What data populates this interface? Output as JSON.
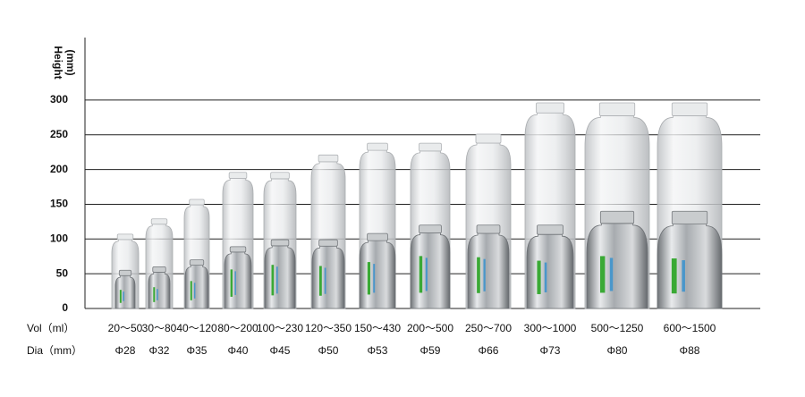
{
  "chart_data": {
    "type": "bottle-bar",
    "y_label": [
      "Height",
      "(mm)"
    ],
    "row_labels": [
      "Vol（ml）",
      "Dia（mm）"
    ],
    "categories": [
      "20～50",
      "30～80",
      "40～120",
      "80～200",
      "100～230",
      "120～350",
      "150～430",
      "200～500",
      "250～700",
      "300～1000",
      "500～1250",
      "600～1500"
    ],
    "dia": [
      "Φ28",
      "Φ32",
      "Φ35",
      "Φ40",
      "Φ45",
      "Φ50",
      "Φ53",
      "Φ59",
      "Φ66",
      "Φ73",
      "Φ80",
      "Φ88"
    ],
    "series": [
      {
        "color": "#d8dadc",
        "values": [
          107,
          129,
          157,
          196,
          196,
          221,
          238,
          238,
          251,
          296,
          296,
          296
        ]
      },
      {
        "color": "#a9adb1",
        "values": [
          55,
          60,
          70,
          89,
          99,
          99,
          108,
          120,
          120,
          120,
          140,
          140
        ]
      }
    ],
    "ylim": [
      0,
      390
    ],
    "yticks": [
      0,
      50,
      100,
      150,
      200,
      250,
      300
    ],
    "grid": true
  }
}
